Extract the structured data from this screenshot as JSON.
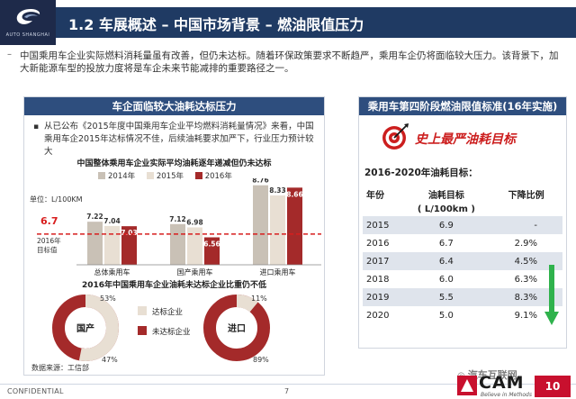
{
  "header": {
    "logo_text": "AUTO SHANGHAI",
    "title": "1.2 车展概述 – 中国市场背景 – 燃油限值压力"
  },
  "intro": {
    "bullet": "–",
    "text": "中国乘用车企业实际燃料消耗量虽有改善，但仍未达标。随着环保政策要求不断趋严，乘用车企仍将面临较大压力。该背景下，加大新能源车型的投放力度将是车企未来节能减排的重要路径之一。"
  },
  "left_panel": {
    "heading": "车企面临较大油耗达标压力",
    "bullet": "▪",
    "text": "从已公布《2015年度中国乘用车企业平均燃料消耗量情况》来看，中国乘用车企2015年达标情况不佳，后续油耗要求加严下，行业压力预计较大",
    "bar_chart_title": "中国整体乘用车企业实际平均油耗逐年递减但仍未达标",
    "unit_label": "单位：L/100KM",
    "target_line_value_label": "6.7",
    "target_line_label_1": "2016年",
    "target_line_label_2": "目标值",
    "donut_title": "2016年中国乘用车企业油耗未达标企业比重仍不低",
    "legend_reach": "达标企业",
    "legend_miss": "未达标企业",
    "donut1_label": "国产",
    "donut2_label": "进口",
    "donut1_reach_pct": "53%",
    "donut1_miss_pct": "47%",
    "donut2_reach_pct": "11%",
    "donut2_miss_pct": "89%",
    "source": "数据来源：工信部"
  },
  "right_panel": {
    "heading": "乘用车第四阶段燃油限值标准(16年实施)",
    "headline": "史上最严油耗目标",
    "subtitle": "2016-2020年油耗目标：",
    "col_year": "年份",
    "col_target": "油耗目标",
    "col_target_unit": "( L/100km )",
    "col_drop": "下降比例",
    "rows": [
      {
        "year": "2015",
        "target": "6.9",
        "drop": "-"
      },
      {
        "year": "2016",
        "target": "6.7",
        "drop": "2.9%"
      },
      {
        "year": "2017",
        "target": "6.4",
        "drop": "4.5%"
      },
      {
        "year": "2018",
        "target": "6.0",
        "drop": "6.3%"
      },
      {
        "year": "2019",
        "target": "5.5",
        "drop": "8.3%"
      },
      {
        "year": "2020",
        "target": "5.0",
        "drop": "9.1%"
      }
    ]
  },
  "footer": {
    "confidential": "CONFIDENTIAL",
    "page": "7",
    "cam": "CAM",
    "cam_tagline": "Believe in Methods",
    "watermark": "汽车互联网",
    "badge": "10"
  },
  "colors": {
    "navy": "#1f3a63",
    "panel_head": "#2e4e7e",
    "bar_2014": "#c9c1b6",
    "bar_2015": "#e8dfd3",
    "bar_2016": "#a42a2a",
    "target_line": "#d81e1e",
    "headline_red": "#cc1e1e",
    "arrow_green": "#2fb24c"
  },
  "chart_data": [
    {
      "type": "bar",
      "title": "中国整体乘用车企业实际平均油耗逐年递减但仍未达标",
      "ylabel": "单位：L/100KM",
      "categories": [
        "总体乘用车",
        "国产乘用车",
        "进口乘用车"
      ],
      "series": [
        {
          "name": "2014年",
          "values": [
            7.22,
            7.12,
            8.76
          ]
        },
        {
          "name": "2015年",
          "values": [
            7.04,
            6.98,
            8.33
          ]
        },
        {
          "name": "2016年",
          "values": [
            7.03,
            6.56,
            8.66
          ]
        }
      ],
      "reference_line": {
        "value": 6.7,
        "label": "2016年目标值"
      },
      "legend": "top"
    },
    {
      "type": "pie",
      "title": "2016年中国乘用车企业油耗未达标企业比重仍不低",
      "groups": [
        {
          "name": "国产",
          "slices": [
            {
              "name": "达标企业",
              "value": 53
            },
            {
              "name": "未达标企业",
              "value": 47
            }
          ]
        },
        {
          "name": "进口",
          "slices": [
            {
              "name": "达标企业",
              "value": 11
            },
            {
              "name": "未达标企业",
              "value": 89
            }
          ]
        }
      ]
    }
  ]
}
